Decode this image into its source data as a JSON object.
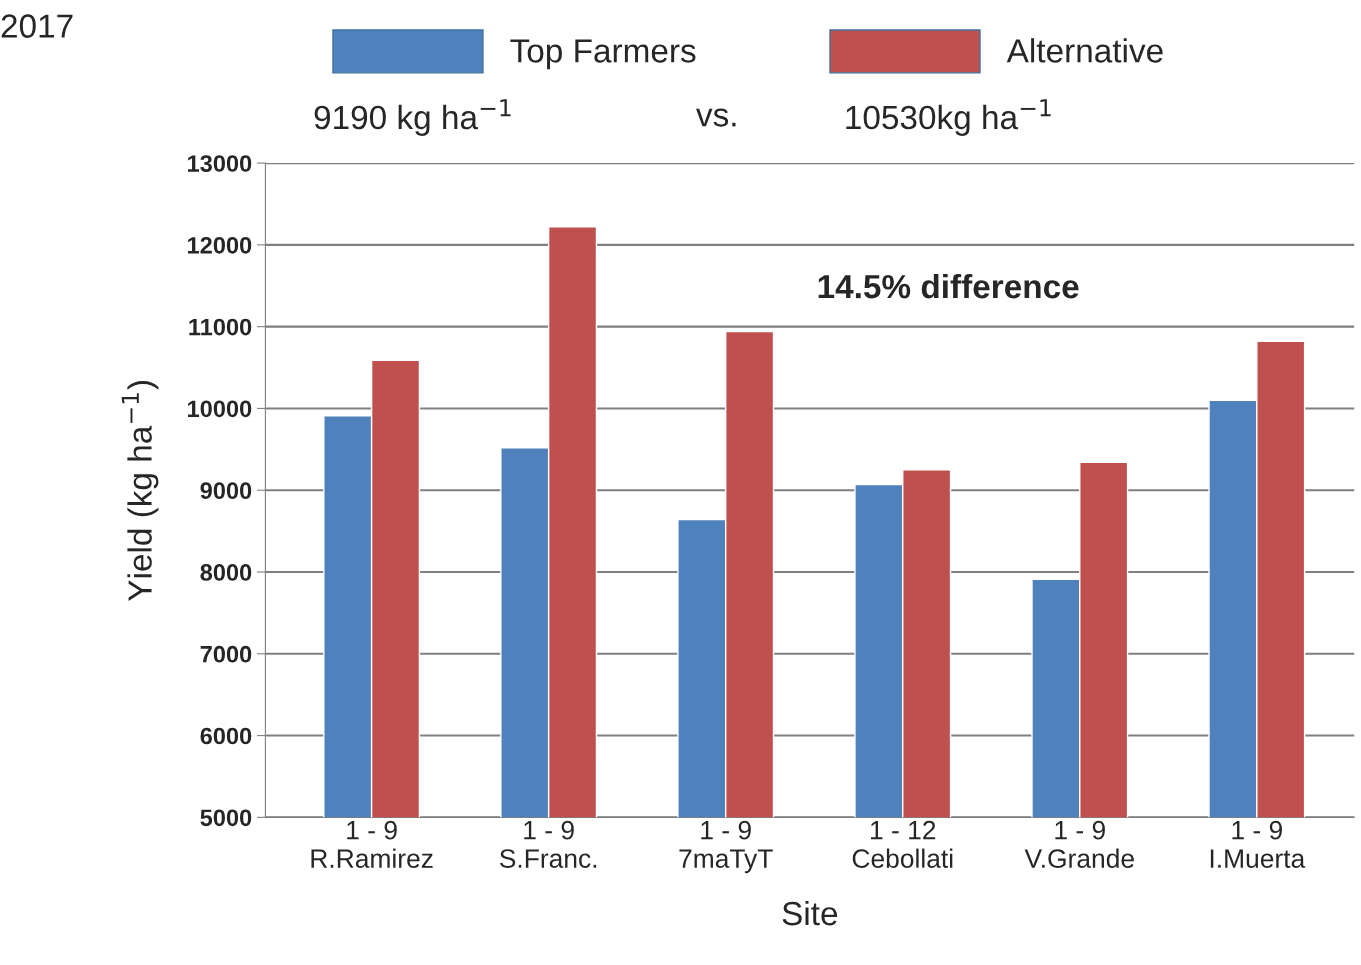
{
  "chart_data": {
    "type": "bar",
    "title": "2017",
    "xlabel": "Site",
    "ylabel": "Yield (kg ha$^{−1}$)",
    "categories": [
      "1 - 9\nR.Ramirez",
      "1 - 9\nS.Franc.",
      "1 - 9\n7maTyT",
      "1 - 12\nCebollati",
      "1 - 9\nV.Grande",
      "1 - 9\nI.Muerta"
    ],
    "series": [
      {
        "name": "Top Farmers",
        "color": "#4f81bd",
        "values": [
          9910,
          9520,
          8640,
          9070,
          7910,
          10100
        ]
      },
      {
        "name": "Alternative",
        "color": "#c0504d",
        "values": [
          10590,
          12220,
          10940,
          9250,
          9340,
          10820
        ]
      }
    ],
    "ylim": [
      5000,
      13000
    ],
    "yticks": [
      5000,
      6000,
      7000,
      8000,
      9000,
      10000,
      11000,
      12000,
      13000
    ],
    "grid": "y",
    "legend": "top",
    "annotations": [
      "9190 kg ha$^{−1}$",
      "vs.",
      "10530kg ha$^{−1}$",
      "14.5% difference"
    ]
  }
}
